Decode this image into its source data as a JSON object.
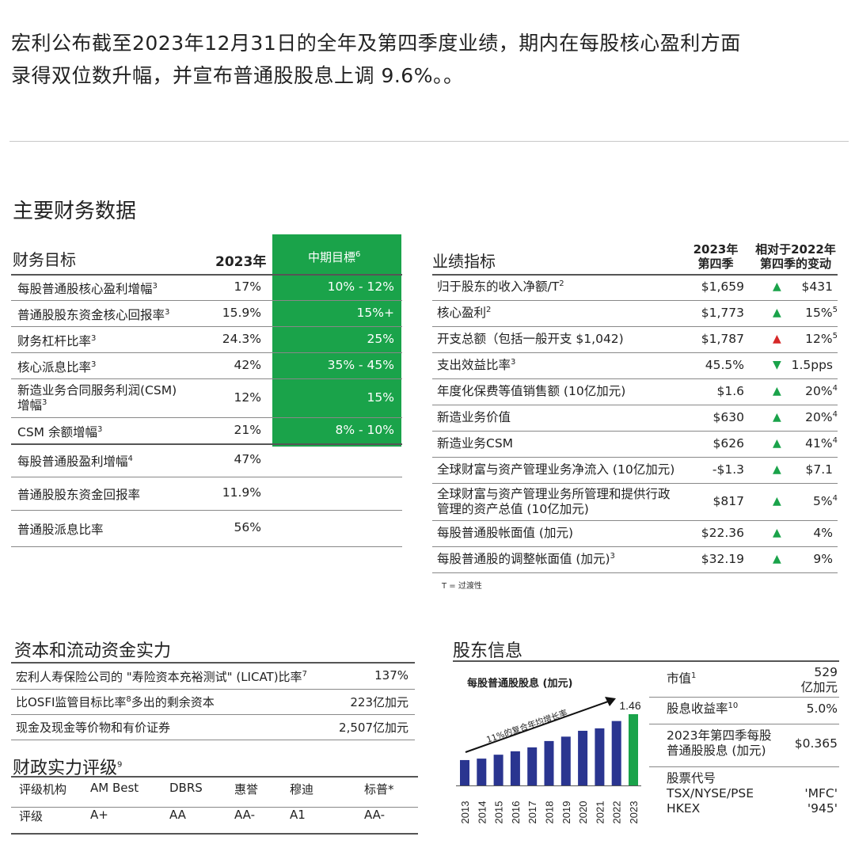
{
  "intro": {
    "line1": "宏利公布截至2023年12月31日的全年及第四季度业绩，期内在每股核心盈利方面",
    "line2": "录得双位数升幅，并宣布普通股股息上调 9.6%。。"
  },
  "main_title": "主要财务数据",
  "financial_targets": {
    "title": "财务目标",
    "col_year": "2023年",
    "col_target": "中期目標",
    "col_target_sup": "6",
    "rows": [
      {
        "label": "每股普通股核心盈利增幅",
        "sup": "3",
        "value": "17%",
        "target": "10% - 12%"
      },
      {
        "label": "普通股股东资金核心回报率",
        "sup": "3",
        "value": "15.9%",
        "target": "15%+"
      },
      {
        "label": "财务杠杆比率",
        "sup": "3",
        "value": "24.3%",
        "target": "25%"
      },
      {
        "label": "核心派息比率",
        "sup": "3",
        "value": "42%",
        "target": "35% - 45%"
      },
      {
        "label": "新造业务合同服务利润(CSM)",
        "label2": "增幅",
        "sup": "3",
        "value": "12%",
        "target": "15%"
      },
      {
        "label": "CSM 余额增幅",
        "sup": "3",
        "value": "21%",
        "target": "8% - 10%"
      },
      {
        "label": "每股普通股盈利增幅",
        "sup": "4",
        "value": "47%",
        "target": ""
      },
      {
        "label": "普通股股东资金回报率",
        "sup": "",
        "value": "11.9%",
        "target": ""
      },
      {
        "label": "普通股派息比率",
        "sup": "",
        "value": "56%",
        "target": ""
      }
    ]
  },
  "performance": {
    "title": "业绩指标",
    "col_q_1": "2023年",
    "col_q_2": "第四季",
    "col_chg_1": "相对于2022年",
    "col_chg_2": "第四季的变动",
    "rows": [
      {
        "label": "归于股东的收入净额/T",
        "sup": "2",
        "value": "$1,659",
        "dir": "up",
        "change": "$431",
        "csup": ""
      },
      {
        "label": "核心盈利",
        "sup": "2",
        "value": "$1,773",
        "dir": "up",
        "change": "15%",
        "csup": "5"
      },
      {
        "label": "开支总额（包括一般开支 $1,042)",
        "sup": "",
        "value": "$1,787",
        "dir": "up-red",
        "change": "12%",
        "csup": "5"
      },
      {
        "label": "支出效益比率",
        "sup": "3",
        "value": "45.5%",
        "dir": "down",
        "change": "1.5pps",
        "csup": ""
      },
      {
        "label": "年度化保费等值销售额 (10亿加元)",
        "sup": "",
        "value": "$1.6",
        "dir": "up",
        "change": "20%",
        "csup": "4"
      },
      {
        "label": "新造业务价值",
        "sup": "",
        "value": "$630",
        "dir": "up",
        "change": "20%",
        "csup": "4"
      },
      {
        "label": "新造业务CSM",
        "sup": "",
        "value": "$626",
        "dir": "up",
        "change": "41%",
        "csup": "4"
      },
      {
        "label": "全球财富与资产管理业务净流入 (10亿加元)",
        "sup": "",
        "value": "-$1.3",
        "dir": "up",
        "change": "$7.1",
        "csup": ""
      },
      {
        "label": "全球财富与资产管理业务所管理和提供行政",
        "label2": "管理的资产总值 (10亿加元)",
        "sup": "",
        "value": "$817",
        "dir": "up",
        "change": "5%",
        "csup": "4"
      },
      {
        "label": "每股普通股帐面值 (加元)",
        "sup": "",
        "value": "$22.36",
        "dir": "up",
        "change": "4%",
        "csup": ""
      },
      {
        "label": "每股普通股的调整帐面值 (加元)",
        "sup": "3",
        "value": "$32.19",
        "dir": "up",
        "change": "9%",
        "csup": ""
      }
    ],
    "note": "T = 过渡性"
  },
  "capital": {
    "title": "资本和流动资金实力",
    "rows": [
      {
        "label": "宏利人寿保险公司的 \"寿险资本充裕测试\" (LICAT)比率",
        "sup": "7",
        "value": "137%"
      },
      {
        "label": "比OSFI监管目标比率",
        "sup": "8",
        "label_after": "多出的剩余资本",
        "value": "223亿加元"
      },
      {
        "label": "现金及现金等价物和有价证券",
        "sup": "",
        "value": "2,507亿加元"
      }
    ]
  },
  "ratings": {
    "title": "财政实力评级",
    "title_sup": "9",
    "header": [
      "评级机构",
      "AM Best",
      "DBRS",
      "惠誉",
      "穆迪",
      "标普*"
    ],
    "row": [
      "评级",
      "A+",
      "AA",
      "AA-",
      "A1",
      "AA-"
    ]
  },
  "shareholder": {
    "title": "股东信息",
    "chart_title": "每股普通股股息 (加元)",
    "cagr_label": "11%的复合年均增长率",
    "rows": [
      {
        "label": "市值",
        "sup": "1",
        "value": "529",
        "value2": "亿加元"
      },
      {
        "label": "股息收益率",
        "sup": "10",
        "value": "5.0%"
      },
      {
        "label": "2023年第四季每股",
        "label2": "普通股股息 (加元)",
        "value": "$0.365"
      },
      {
        "label": "股票代号",
        "label2": "TSX/NYSE/PSE",
        "label3": "HKEX",
        "value": "'MFC'",
        "value2": "'945'"
      }
    ]
  },
  "colors": {
    "accent_green": "#1aa34a",
    "bar_navy": "#2a3590",
    "arrow_red": "#d62828"
  },
  "chart_data": {
    "type": "bar",
    "title": "每股普通股股息 (加元)",
    "categories": [
      "2013",
      "2014",
      "2015",
      "2016",
      "2017",
      "2018",
      "2019",
      "2020",
      "2021",
      "2022",
      "2023"
    ],
    "values": [
      0.52,
      0.55,
      0.63,
      0.7,
      0.78,
      0.91,
      1.0,
      1.12,
      1.17,
      1.32,
      1.46
    ],
    "value_labels": {
      "2023": "1.46"
    },
    "annotations": [
      "11%的复合年均增长率"
    ]
  }
}
